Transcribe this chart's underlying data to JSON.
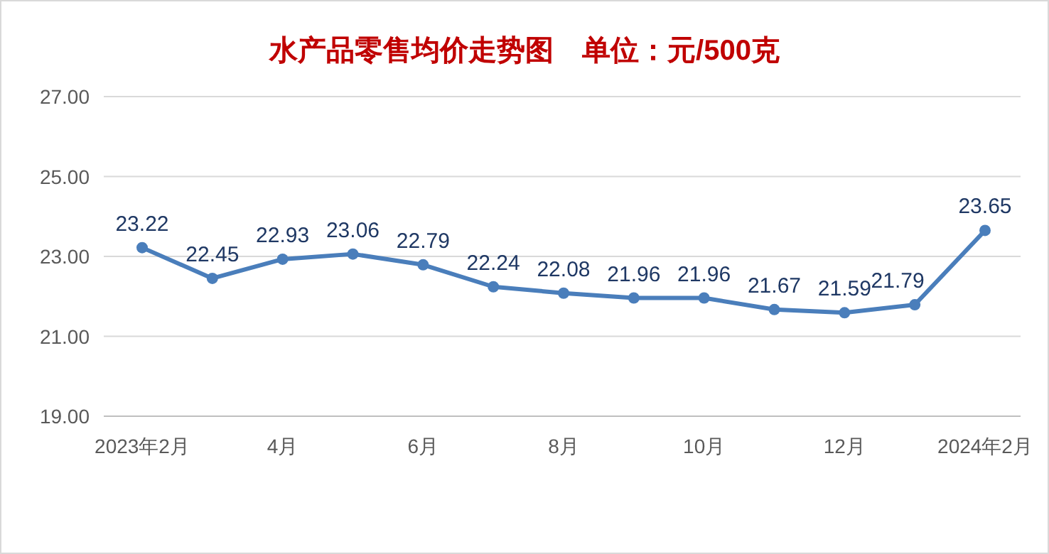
{
  "chart_data": {
    "type": "line",
    "title": "水产品零售均价走势图　单位：元/500克",
    "categories": [
      "2023年2月",
      null,
      "4月",
      null,
      "6月",
      null,
      "8月",
      null,
      "10月",
      null,
      "12月",
      null,
      "2024年2月"
    ],
    "series": [
      {
        "color": "#4a7ebb",
        "values": [
          23.22,
          22.45,
          22.93,
          23.06,
          22.79,
          22.24,
          22.08,
          21.96,
          21.96,
          21.67,
          21.59,
          21.79,
          23.65
        ]
      }
    ],
    "ylim": [
      19,
      27
    ],
    "yticks": [
      {
        "value": 19,
        "label": "19.00"
      },
      {
        "value": 21,
        "label": "21.00"
      },
      {
        "value": 23,
        "label": "23.00"
      },
      {
        "value": 25,
        "label": "25.00"
      },
      {
        "value": 27,
        "label": "27.00"
      }
    ],
    "grid": "y",
    "marker": "circle",
    "data_labels": true
  }
}
